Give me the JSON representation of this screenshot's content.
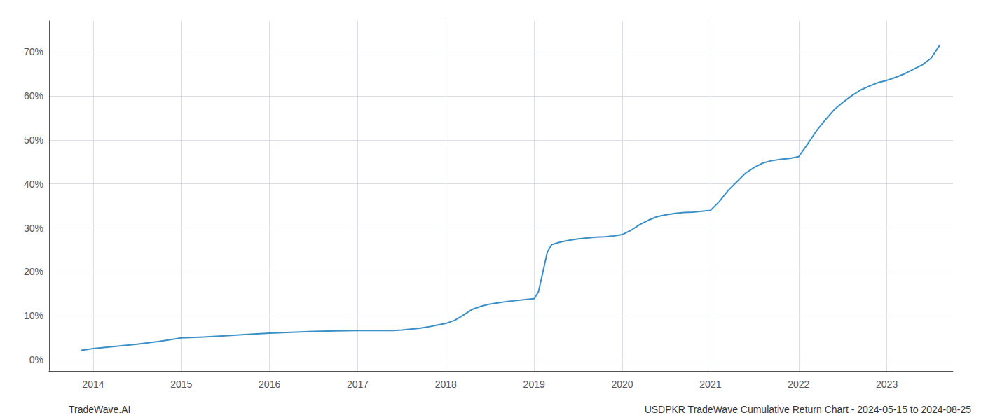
{
  "chart_data": {
    "type": "line",
    "annotations": [
      "TradeWave.AI",
      "USDPKR TradeWave Cumulative Return Chart - 2024-05-15 to 2024-08-25"
    ],
    "color": "#3a8fc7",
    "grid": true,
    "xlim": [
      2013.5,
      2023.75
    ],
    "ylim": [
      -0.025,
      0.77
    ],
    "xticks": [
      2014,
      2015,
      2016,
      2017,
      2018,
      2019,
      2020,
      2021,
      2022,
      2023
    ],
    "yticks": [
      {
        "value": 0.0,
        "label": "0%"
      },
      {
        "value": 0.1,
        "label": "10%"
      },
      {
        "value": 0.2,
        "label": "20%"
      },
      {
        "value": 0.3,
        "label": "30%"
      },
      {
        "value": 0.4,
        "label": "40%"
      },
      {
        "value": 0.5,
        "label": "50%"
      },
      {
        "value": 0.6,
        "label": "60%"
      },
      {
        "value": 0.7,
        "label": "70%"
      }
    ],
    "x": [
      2013.87,
      2014.0,
      2014.2,
      2014.5,
      2014.75,
      2015.0,
      2015.25,
      2015.5,
      2015.75,
      2016.0,
      2016.25,
      2016.5,
      2016.75,
      2017.0,
      2017.1,
      2017.2,
      2017.3,
      2017.4,
      2017.5,
      2017.6,
      2017.7,
      2017.8,
      2017.9,
      2018.0,
      2018.1,
      2018.15,
      2018.2,
      2018.3,
      2018.4,
      2018.5,
      2018.6,
      2018.7,
      2018.8,
      2018.9,
      2019.0,
      2019.05,
      2019.1,
      2019.15,
      2019.2,
      2019.3,
      2019.4,
      2019.5,
      2019.6,
      2019.7,
      2019.8,
      2019.9,
      2020.0,
      2020.1,
      2020.2,
      2020.3,
      2020.4,
      2020.5,
      2020.6,
      2020.7,
      2020.8,
      2020.9,
      2021.0,
      2021.1,
      2021.2,
      2021.3,
      2021.4,
      2021.5,
      2021.6,
      2021.7,
      2021.8,
      2021.9,
      2022.0,
      2022.1,
      2022.2,
      2022.3,
      2022.4,
      2022.5,
      2022.6,
      2022.7,
      2022.8,
      2022.9,
      2023.0,
      2023.1,
      2023.2,
      2023.3,
      2023.4,
      2023.5,
      2023.6
    ],
    "values": [
      0.022,
      0.026,
      0.03,
      0.036,
      0.042,
      0.05,
      0.052,
      0.055,
      0.058,
      0.061,
      0.063,
      0.065,
      0.066,
      0.067,
      0.067,
      0.067,
      0.067,
      0.067,
      0.068,
      0.07,
      0.072,
      0.075,
      0.079,
      0.083,
      0.09,
      0.096,
      0.102,
      0.115,
      0.122,
      0.127,
      0.13,
      0.133,
      0.135,
      0.137,
      0.139,
      0.155,
      0.2,
      0.245,
      0.262,
      0.268,
      0.272,
      0.275,
      0.277,
      0.279,
      0.28,
      0.282,
      0.285,
      0.295,
      0.308,
      0.318,
      0.326,
      0.33,
      0.333,
      0.335,
      0.336,
      0.338,
      0.34,
      0.36,
      0.385,
      0.405,
      0.425,
      0.438,
      0.448,
      0.453,
      0.456,
      0.458,
      0.462,
      0.49,
      0.52,
      0.545,
      0.568,
      0.585,
      0.6,
      0.613,
      0.622,
      0.63,
      0.635,
      0.642,
      0.65,
      0.66,
      0.67,
      0.685,
      0.715
    ]
  }
}
